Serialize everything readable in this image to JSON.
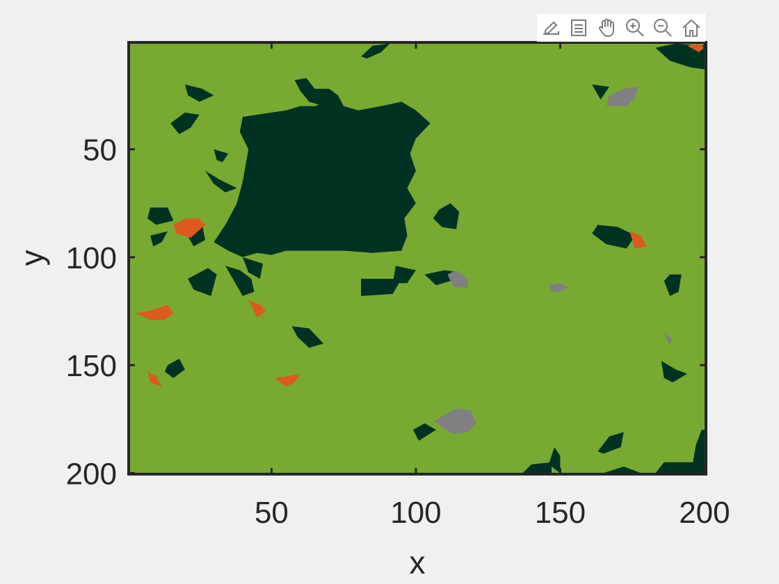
{
  "toolbar": {
    "buttons": [
      {
        "icon": "export-icon"
      },
      {
        "icon": "datatips-icon"
      },
      {
        "icon": "pan-hand-icon"
      },
      {
        "icon": "zoom-in-icon"
      },
      {
        "icon": "zoom-out-icon"
      },
      {
        "icon": "home-icon"
      }
    ]
  },
  "chart_data": {
    "type": "heatmap",
    "title": "",
    "xlabel": "x",
    "ylabel": "y",
    "xlim": [
      0.5,
      200.5
    ],
    "ylim": [
      0.5,
      200.5
    ],
    "y_reversed": true,
    "xticks": [
      50,
      100,
      150,
      200
    ],
    "yticks": [
      50,
      100,
      150,
      200
    ],
    "grid": false,
    "legend": "none",
    "colors": {
      "background_class": "#78aa32",
      "dark_class": "#003223",
      "orange_class": "#dc5a1e",
      "gray_class": "#808080",
      "axes_frame": "#262626"
    },
    "regions": [
      {
        "class": "dark",
        "polygon": [
          [
            40,
            35
          ],
          [
            55,
            32
          ],
          [
            60,
            30
          ],
          [
            65,
            30
          ],
          [
            70,
            28
          ],
          [
            75,
            30
          ],
          [
            80,
            32
          ],
          [
            88,
            30
          ],
          [
            95,
            28
          ],
          [
            100,
            32
          ],
          [
            105,
            38
          ],
          [
            100,
            45
          ],
          [
            98,
            52
          ],
          [
            100,
            60
          ],
          [
            97,
            68
          ],
          [
            100,
            75
          ],
          [
            96,
            82
          ],
          [
            97,
            90
          ],
          [
            95,
            97
          ],
          [
            85,
            98
          ],
          [
            75,
            97
          ],
          [
            65,
            97
          ],
          [
            55,
            97
          ],
          [
            50,
            99
          ],
          [
            45,
            98
          ],
          [
            40,
            100
          ],
          [
            35,
            97
          ],
          [
            30,
            93
          ],
          [
            34,
            85
          ],
          [
            38,
            75
          ],
          [
            40,
            65
          ],
          [
            42,
            50
          ],
          [
            39,
            42
          ]
        ]
      },
      {
        "class": "dark",
        "polygon": [
          [
            58,
            18
          ],
          [
            62,
            17
          ],
          [
            65,
            22
          ],
          [
            70,
            22
          ],
          [
            73,
            25
          ],
          [
            75,
            30
          ],
          [
            68,
            30
          ],
          [
            63,
            28
          ],
          [
            60,
            23
          ]
        ]
      },
      {
        "class": "dark",
        "polygon": [
          [
            20,
            20
          ],
          [
            26,
            22
          ],
          [
            30,
            25
          ],
          [
            25,
            28
          ],
          [
            21,
            25
          ]
        ]
      },
      {
        "class": "dark",
        "polygon": [
          [
            15,
            38
          ],
          [
            20,
            33
          ],
          [
            25,
            34
          ],
          [
            22,
            40
          ],
          [
            18,
            43
          ]
        ]
      },
      {
        "class": "dark",
        "polygon": [
          [
            30,
            50
          ],
          [
            35,
            52
          ],
          [
            33,
            56
          ],
          [
            31,
            55
          ]
        ]
      },
      {
        "class": "dark",
        "polygon": [
          [
            27,
            60
          ],
          [
            32,
            64
          ],
          [
            38,
            68
          ],
          [
            34,
            70
          ],
          [
            30,
            66
          ]
        ]
      },
      {
        "class": "dark",
        "polygon": [
          [
            8,
            77
          ],
          [
            14,
            77
          ],
          [
            16,
            83
          ],
          [
            10,
            85
          ],
          [
            7,
            82
          ]
        ]
      },
      {
        "class": "dark",
        "polygon": [
          [
            8,
            90
          ],
          [
            14,
            88
          ],
          [
            12,
            93
          ],
          [
            9,
            95
          ]
        ]
      },
      {
        "class": "dark",
        "polygon": [
          [
            20,
            88
          ],
          [
            26,
            85
          ],
          [
            27,
            92
          ],
          [
            23,
            95
          ]
        ]
      },
      {
        "class": "dark",
        "polygon": [
          [
            21,
            110
          ],
          [
            28,
            105
          ],
          [
            31,
            108
          ],
          [
            29,
            118
          ],
          [
            23,
            115
          ]
        ]
      },
      {
        "class": "dark",
        "polygon": [
          [
            34,
            104
          ],
          [
            39,
            106
          ],
          [
            43,
            110
          ],
          [
            44,
            116
          ],
          [
            40,
            118
          ]
        ]
      },
      {
        "class": "dark",
        "polygon": [
          [
            40,
            100
          ],
          [
            47,
            103
          ],
          [
            46,
            110
          ],
          [
            42,
            107
          ]
        ]
      },
      {
        "class": "dark",
        "polygon": [
          [
            57,
            132
          ],
          [
            63,
            133
          ],
          [
            68,
            140
          ],
          [
            63,
            142
          ],
          [
            59,
            137
          ]
        ]
      },
      {
        "class": "dark",
        "polygon": [
          [
            14,
            150
          ],
          [
            18,
            147
          ],
          [
            20,
            152
          ],
          [
            16,
            156
          ],
          [
            13,
            153
          ]
        ]
      },
      {
        "class": "dark",
        "polygon": [
          [
            103,
            108
          ],
          [
            110,
            106
          ],
          [
            115,
            107
          ],
          [
            112,
            111
          ],
          [
            107,
            113
          ]
        ]
      },
      {
        "class": "dark",
        "polygon": [
          [
            81,
            110
          ],
          [
            95,
            110
          ],
          [
            92,
            117
          ],
          [
            81,
            118
          ]
        ]
      },
      {
        "class": "dark",
        "polygon": [
          [
            93,
            104
          ],
          [
            100,
            106
          ],
          [
            97,
            112
          ],
          [
            92,
            112
          ]
        ]
      },
      {
        "class": "dark",
        "polygon": [
          [
            108,
            78
          ],
          [
            112,
            75
          ],
          [
            115,
            79
          ],
          [
            114,
            87
          ],
          [
            109,
            86
          ],
          [
            106,
            82
          ]
        ]
      },
      {
        "class": "dark",
        "polygon": [
          [
            161,
            20
          ],
          [
            167,
            21
          ],
          [
            164,
            27
          ]
        ]
      },
      {
        "class": "dark",
        "polygon": [
          [
            163,
            85
          ],
          [
            170,
            86
          ],
          [
            176,
            90
          ],
          [
            173,
            96
          ],
          [
            166,
            94
          ],
          [
            161,
            89
          ]
        ]
      },
      {
        "class": "dark",
        "polygon": [
          [
            188,
            108
          ],
          [
            192,
            108
          ],
          [
            191,
            116
          ],
          [
            188,
            118
          ],
          [
            186,
            111
          ]
        ]
      },
      {
        "class": "dark",
        "polygon": [
          [
            185,
            148
          ],
          [
            190,
            152
          ],
          [
            194,
            154
          ],
          [
            189,
            158
          ],
          [
            186,
            156
          ]
        ]
      },
      {
        "class": "dark",
        "polygon": [
          [
            163,
            190
          ],
          [
            167,
            183
          ],
          [
            172,
            181
          ],
          [
            171,
            188
          ],
          [
            165,
            191
          ]
        ]
      },
      {
        "class": "dark",
        "polygon": [
          [
            137,
            200
          ],
          [
            140,
            196
          ],
          [
            147,
            195
          ],
          [
            147,
            200
          ]
        ]
      },
      {
        "class": "dark",
        "polygon": [
          [
            146,
            196
          ],
          [
            148,
            188
          ],
          [
            150,
            192
          ],
          [
            150,
            200
          ]
        ]
      },
      {
        "class": "dark",
        "polygon": [
          [
            165,
            200
          ],
          [
            172,
            197
          ],
          [
            178,
            200
          ]
        ]
      },
      {
        "class": "dark",
        "polygon": [
          [
            183,
            200
          ],
          [
            186,
            195
          ],
          [
            196,
            195
          ],
          [
            197,
            187
          ],
          [
            199,
            180
          ],
          [
            200,
            180
          ],
          [
            200,
            200
          ]
        ]
      },
      {
        "class": "dark",
        "polygon": [
          [
            183,
            3
          ],
          [
            190,
            1
          ],
          [
            200,
            2
          ],
          [
            200,
            13
          ],
          [
            195,
            12
          ],
          [
            188,
            9
          ]
        ]
      },
      {
        "class": "dark",
        "polygon": [
          [
            81,
            7
          ],
          [
            85,
            2
          ],
          [
            91,
            1
          ],
          [
            88,
            5
          ],
          [
            83,
            8
          ]
        ]
      },
      {
        "class": "dark",
        "polygon": [
          [
            99,
            180
          ],
          [
            103,
            177
          ],
          [
            107,
            180
          ],
          [
            101,
            185
          ]
        ]
      },
      {
        "class": "orange",
        "polygon": [
          [
            16,
            85
          ],
          [
            20,
            82
          ],
          [
            25,
            82
          ],
          [
            27,
            85
          ],
          [
            22,
            91
          ],
          [
            17,
            89
          ]
        ]
      },
      {
        "class": "orange",
        "polygon": [
          [
            3,
            126
          ],
          [
            10,
            124
          ],
          [
            14,
            122
          ],
          [
            16,
            126
          ],
          [
            13,
            129
          ],
          [
            8,
            129
          ]
        ]
      },
      {
        "class": "orange",
        "polygon": [
          [
            42,
            120
          ],
          [
            46,
            122
          ],
          [
            48,
            125
          ],
          [
            45,
            128
          ]
        ]
      },
      {
        "class": "orange",
        "polygon": [
          [
            7,
            153
          ],
          [
            10,
            155
          ],
          [
            12,
            160
          ],
          [
            8,
            158
          ]
        ]
      },
      {
        "class": "orange",
        "polygon": [
          [
            51,
            156
          ],
          [
            56,
            155
          ],
          [
            60,
            154
          ],
          [
            58,
            158
          ],
          [
            55,
            160
          ]
        ]
      },
      {
        "class": "orange",
        "polygon": [
          [
            174,
            88
          ],
          [
            178,
            90
          ],
          [
            180,
            95
          ],
          [
            176,
            96
          ]
        ]
      },
      {
        "class": "orange",
        "polygon": [
          [
            194,
            2
          ],
          [
            198,
            1
          ],
          [
            200,
            3
          ],
          [
            198,
            5
          ]
        ]
      },
      {
        "class": "gray",
        "polygon": [
          [
            167,
            25
          ],
          [
            172,
            22
          ],
          [
            177,
            21
          ],
          [
            176,
            26
          ],
          [
            173,
            30
          ],
          [
            166,
            30
          ]
        ]
      },
      {
        "class": "gray",
        "polygon": [
          [
            111,
            108
          ],
          [
            114,
            106
          ],
          [
            118,
            110
          ],
          [
            118,
            114
          ],
          [
            113,
            114
          ]
        ]
      },
      {
        "class": "gray",
        "polygon": [
          [
            146,
            113
          ],
          [
            150,
            112
          ],
          [
            153,
            114
          ],
          [
            150,
            116
          ],
          [
            147,
            116
          ]
        ]
      },
      {
        "class": "gray",
        "polygon": [
          [
            186,
            135
          ],
          [
            189,
            138
          ],
          [
            188,
            141
          ]
        ]
      },
      {
        "class": "gray",
        "polygon": [
          [
            106,
            176
          ],
          [
            114,
            170
          ],
          [
            119,
            171
          ],
          [
            121,
            177
          ],
          [
            118,
            181
          ],
          [
            113,
            182
          ]
        ]
      }
    ]
  }
}
